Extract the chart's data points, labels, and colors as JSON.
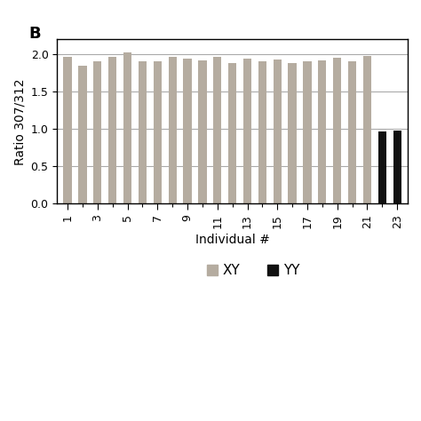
{
  "title": "B",
  "xlabel": "Individual #",
  "ylabel": "Ratio 307/312",
  "ylim": [
    0.0,
    2.2
  ],
  "yticks": [
    0.0,
    0.5,
    1.0,
    1.5,
    2.0
  ],
  "n_bars": 23,
  "xtick_positions": [
    1,
    3,
    5,
    7,
    9,
    11,
    13,
    15,
    17,
    19,
    21,
    23
  ],
  "xtick_labels": [
    "1",
    "3",
    "5",
    "7",
    "9",
    "11",
    "13",
    "15",
    "17",
    "19",
    "21",
    "23"
  ],
  "values": [
    1.97,
    1.85,
    1.91,
    1.97,
    2.02,
    1.9,
    1.9,
    1.97,
    1.94,
    1.92,
    1.97,
    1.88,
    1.94,
    1.9,
    1.93,
    1.88,
    1.9,
    1.92,
    1.95,
    1.91,
    1.98,
    0.97,
    0.98
  ],
  "bar_colors": [
    "#b5aca0",
    "#b5aca0",
    "#b5aca0",
    "#b5aca0",
    "#b5aca0",
    "#b5aca0",
    "#b5aca0",
    "#b5aca0",
    "#b5aca0",
    "#b5aca0",
    "#b5aca0",
    "#b5aca0",
    "#b5aca0",
    "#b5aca0",
    "#b5aca0",
    "#b5aca0",
    "#b5aca0",
    "#b5aca0",
    "#b5aca0",
    "#b5aca0",
    "#b5aca0",
    "#111111",
    "#111111"
  ],
  "bar_width": 0.55,
  "grid_color": "#aaaaaa",
  "legend_xy_label": [
    "XY",
    "YY"
  ],
  "legend_xy_color": [
    "#b5aca0",
    "#111111"
  ],
  "background_color": "#ffffff",
  "title_fontsize": 13,
  "axis_fontsize": 10,
  "tick_fontsize": 9
}
